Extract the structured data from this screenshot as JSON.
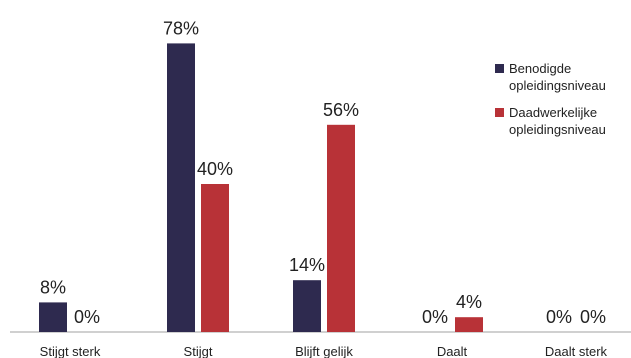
{
  "chart_data": {
    "type": "bar",
    "categories": [
      "Stijgt sterk",
      "Stijgt",
      "Blijft gelijk",
      "Daalt",
      "Daalt sterk"
    ],
    "series": [
      {
        "name": "Benodigde opleidingsniveau",
        "legend_lines": [
          "Benodigde",
          "opleidingsniveau"
        ],
        "color": "#2e2a4f",
        "values": [
          8,
          78,
          14,
          0,
          0
        ],
        "labels": [
          "8%",
          "78%",
          "14%",
          "0%",
          "0%"
        ]
      },
      {
        "name": "Daadwerkelijke opleidingsniveau",
        "legend_lines": [
          "Daadwerkelijke",
          "opleidingsniveau"
        ],
        "color": "#b83237",
        "values": [
          0,
          40,
          56,
          4,
          0
        ],
        "labels": [
          "0%",
          "40%",
          "56%",
          "4%",
          "0%"
        ]
      }
    ],
    "ylim": [
      0,
      100
    ],
    "grid": false,
    "legend_position": "top-right"
  }
}
